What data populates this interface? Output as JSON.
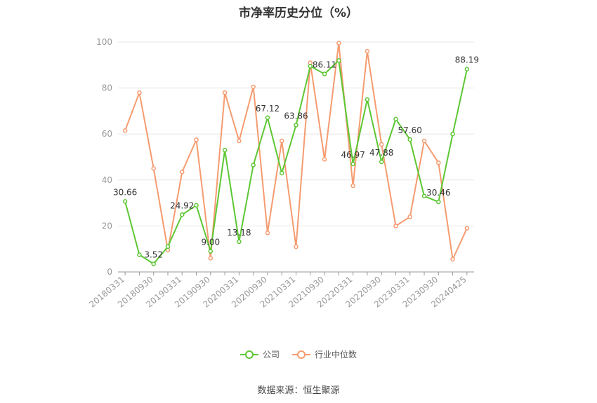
{
  "title": "市净率历史分位（%）",
  "source": "数据来源：恒生聚源",
  "colors": {
    "company": "#5dc734",
    "industry": "#f59b70",
    "grid": "#e6e6e6",
    "axis": "#999999"
  },
  "legend": {
    "company": "公司",
    "industry": "行业中位数"
  },
  "chart_data": {
    "type": "line",
    "ylim": [
      0,
      100
    ],
    "yticks": [
      0,
      20,
      40,
      60,
      80,
      100
    ],
    "x_tick_labels": [
      "20180331",
      "20180930",
      "20190331",
      "20190930",
      "20200331",
      "20200930",
      "20210331",
      "20210930",
      "20220331",
      "20220930",
      "20230331",
      "20230930",
      "20240425"
    ],
    "x": [
      "20180331",
      "20180630",
      "20180930",
      "20181231",
      "20190331",
      "20190630",
      "20190930",
      "20191231",
      "20200331",
      "20200630",
      "20200930",
      "20201231",
      "20210331",
      "20210630",
      "20210930",
      "20211231",
      "20220331",
      "20220630",
      "20220930",
      "20221231",
      "20230331",
      "20230630",
      "20230930",
      "20231231",
      "20240425"
    ],
    "series": [
      {
        "name": "公司",
        "key": "company",
        "values": [
          30.66,
          7.5,
          3.52,
          11.0,
          24.92,
          29.0,
          9.0,
          53.0,
          13.18,
          46.5,
          67.12,
          43.0,
          63.86,
          89.5,
          86.11,
          92.0,
          46.97,
          75.0,
          47.88,
          66.5,
          57.6,
          33.0,
          30.46,
          60.0,
          88.19
        ],
        "labels": {
          "0": "30.66",
          "2": "3.52",
          "4": "24.92",
          "6": "9.00",
          "8": "13.18",
          "10": "67.12",
          "12": "63.86",
          "14": "86.11",
          "16": "46.97",
          "18": "47.88",
          "20": "57.60",
          "22": "30.46",
          "24": "88.19"
        }
      },
      {
        "name": "行业中位数",
        "key": "industry",
        "values": [
          61.5,
          78.0,
          45.0,
          9.5,
          43.5,
          57.5,
          6.0,
          78.0,
          57.0,
          80.5,
          17.0,
          57.0,
          11.0,
          91.0,
          49.0,
          99.5,
          37.5,
          96.0,
          55.5,
          20.0,
          24.0,
          57.0,
          47.5,
          5.5,
          19.0
        ]
      }
    ]
  }
}
